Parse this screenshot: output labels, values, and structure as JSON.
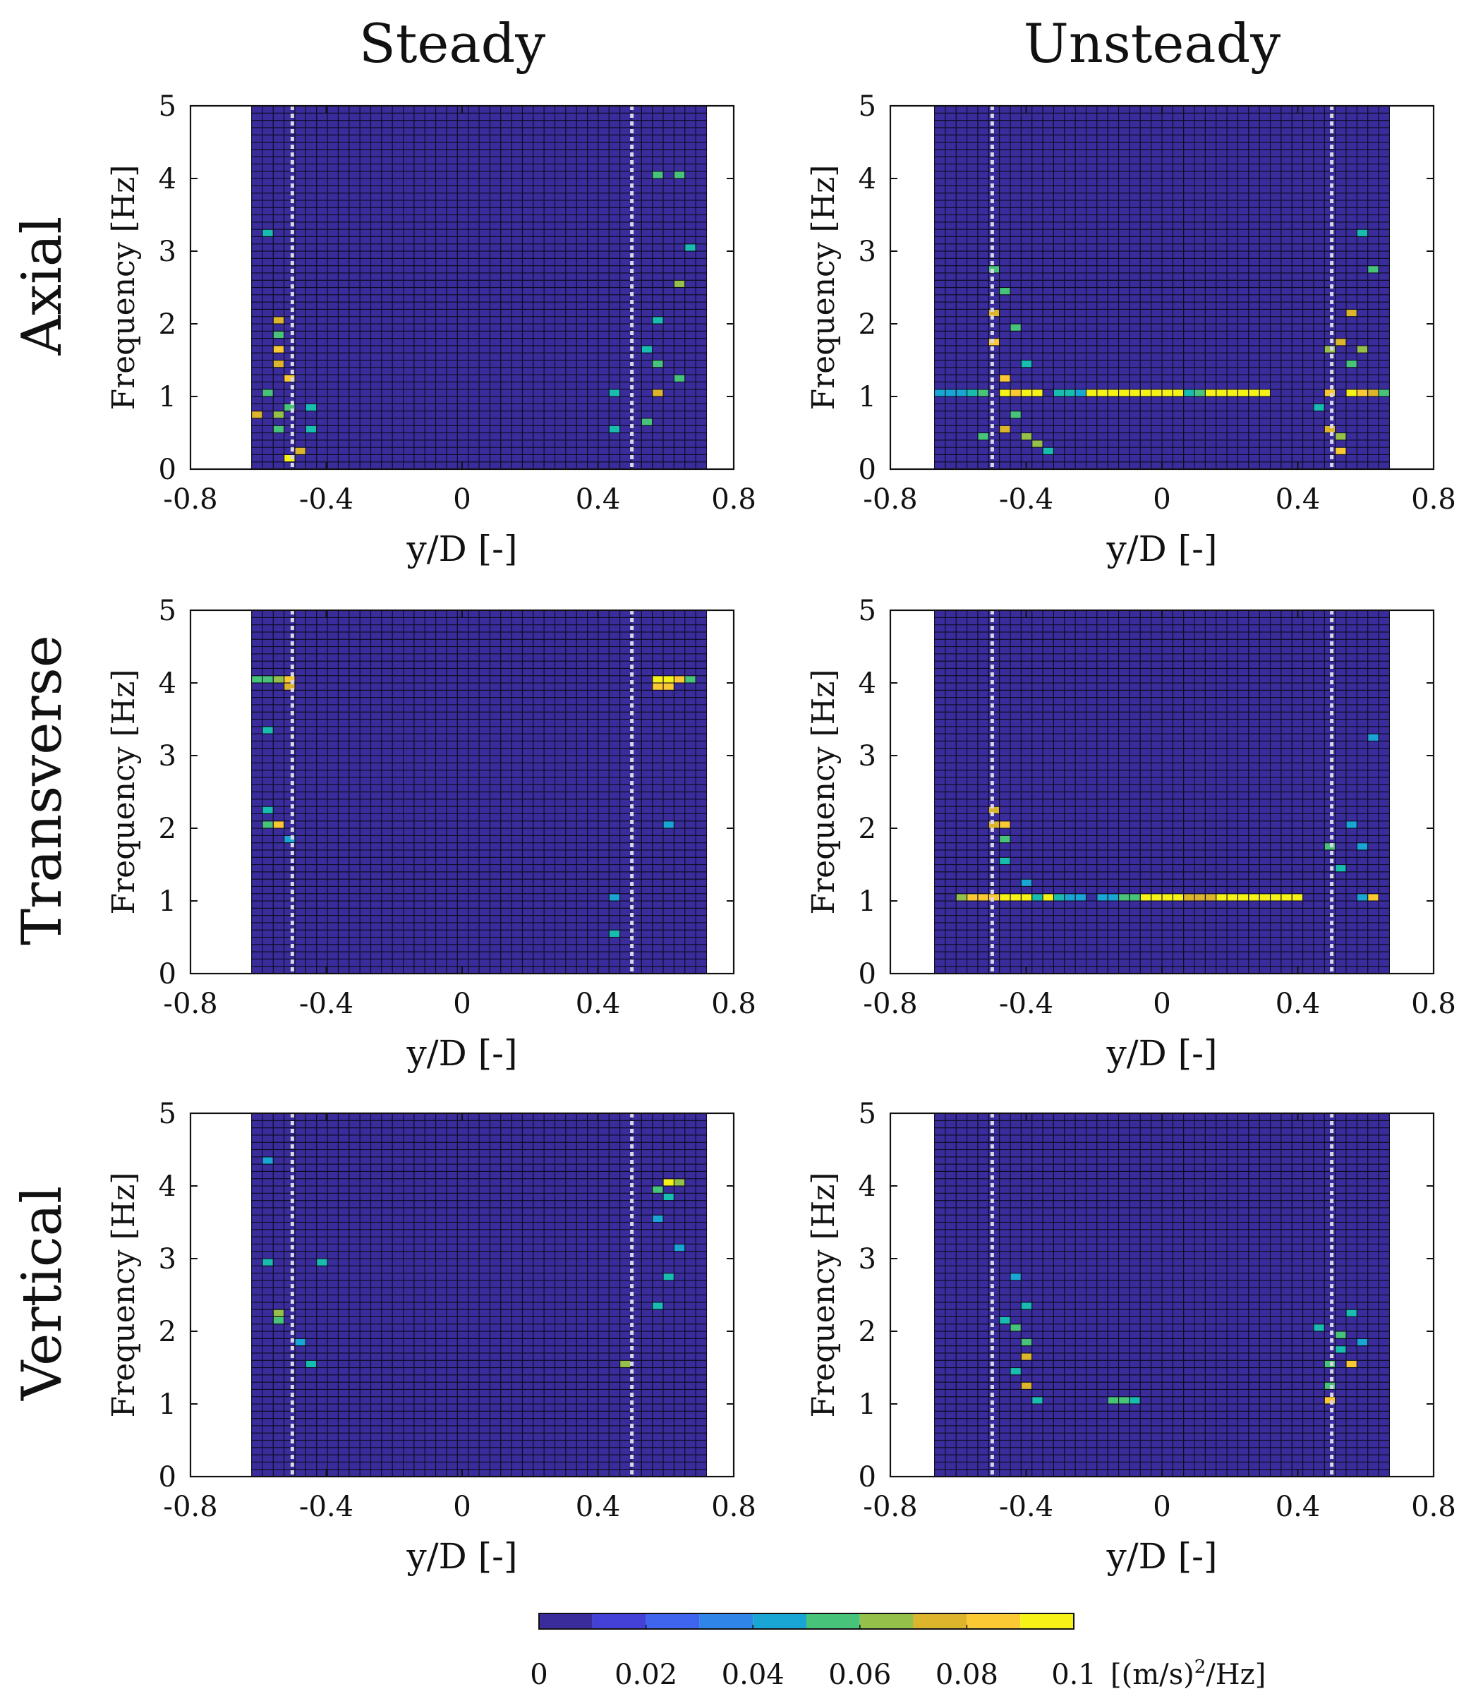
{
  "figure": {
    "column_titles": [
      "Steady",
      "Unsteady"
    ],
    "row_titles": [
      "Axial",
      "Transverse",
      "Vertical"
    ]
  },
  "colormap": [
    "#3a2c9b",
    "#4341d8",
    "#3f65ee",
    "#2f86e8",
    "#1aa6d4",
    "#18bdb0",
    "#48c47a",
    "#95c04a",
    "#dcb52c",
    "#fbc934",
    "#f6f218"
  ],
  "chart_data": [
    {
      "type": "heatmap",
      "row": "Axial",
      "column": "Steady",
      "xlabel": "y/D [-]",
      "ylabel": "Frequency [Hz]",
      "xlim": [
        -0.8,
        0.8
      ],
      "ylim": [
        0,
        5
      ],
      "xticks": [
        "-0.8",
        "-0.4",
        "0",
        "0.4",
        "0.8"
      ],
      "yticks": [
        "0",
        "1",
        "2",
        "3",
        "4",
        "5"
      ],
      "data_x_range": [
        -0.62,
        0.72
      ],
      "markers": [
        -0.5,
        0.5
      ],
      "x_bins": 42,
      "y_bins": 50,
      "value_unit": "[(m/s)^2/Hz]",
      "background_value": 0.001,
      "hot_cells": [
        [
          -0.607,
          0.75,
          0.08
        ],
        [
          -0.543,
          1.65,
          0.09
        ],
        [
          -0.543,
          1.45,
          0.08
        ],
        [
          -0.543,
          2.05,
          0.08
        ],
        [
          -0.543,
          0.75,
          0.07
        ],
        [
          -0.511,
          1.25,
          0.09
        ],
        [
          -0.511,
          0.15,
          0.1
        ],
        [
          -0.479,
          0.25,
          0.08
        ],
        [
          -0.511,
          0.85,
          0.06
        ],
        [
          -0.575,
          1.05,
          0.06
        ],
        [
          -0.543,
          1.85,
          0.06
        ],
        [
          -0.575,
          3.25,
          0.05
        ],
        [
          -0.543,
          0.55,
          0.06
        ],
        [
          -0.447,
          0.55,
          0.05
        ],
        [
          -0.447,
          0.85,
          0.05
        ],
        [
          0.568,
          4.05,
          0.06
        ],
        [
          0.632,
          2.55,
          0.07
        ],
        [
          0.632,
          4.05,
          0.06
        ],
        [
          0.568,
          1.05,
          0.08
        ],
        [
          0.568,
          1.45,
          0.06
        ],
        [
          0.632,
          1.25,
          0.06
        ],
        [
          0.536,
          0.65,
          0.06
        ],
        [
          0.44,
          1.05,
          0.05
        ],
        [
          0.44,
          0.55,
          0.05
        ],
        [
          0.568,
          2.05,
          0.05
        ],
        [
          0.664,
          3.05,
          0.05
        ],
        [
          0.536,
          1.65,
          0.05
        ]
      ],
      "band_cells": []
    },
    {
      "type": "heatmap",
      "row": "Axial",
      "column": "Unsteady",
      "xlabel": "y/D [-]",
      "ylabel": "Frequency [Hz]",
      "xlim": [
        -0.8,
        0.8
      ],
      "ylim": [
        0,
        5
      ],
      "xticks": [
        "-0.8",
        "-0.4",
        "0",
        "0.4",
        "0.8"
      ],
      "yticks": [
        "0",
        "1",
        "2",
        "3",
        "4",
        "5"
      ],
      "data_x_range": [
        -0.67,
        0.67
      ],
      "markers": [
        -0.5,
        0.5
      ],
      "x_bins": 42,
      "y_bins": 50,
      "value_unit": "[(m/s)^2/Hz]",
      "background_value": 0.001,
      "hot_cells": [
        [
          -0.495,
          2.15,
          0.08
        ],
        [
          -0.495,
          1.75,
          0.09
        ],
        [
          -0.463,
          1.25,
          0.09
        ],
        [
          -0.463,
          0.55,
          0.08
        ],
        [
          -0.431,
          1.05,
          0.06
        ],
        [
          -0.399,
          0.45,
          0.07
        ],
        [
          -0.431,
          0.75,
          0.06
        ],
        [
          -0.367,
          0.35,
          0.07
        ],
        [
          -0.495,
          2.75,
          0.06
        ],
        [
          -0.463,
          2.45,
          0.06
        ],
        [
          -0.431,
          1.95,
          0.06
        ],
        [
          -0.399,
          1.45,
          0.05
        ],
        [
          -0.335,
          0.25,
          0.05
        ],
        [
          -0.527,
          0.45,
          0.06
        ],
        [
          -0.399,
          1.05,
          0.05
        ],
        [
          0.485,
          1.05,
          0.09
        ],
        [
          0.485,
          0.55,
          0.08
        ],
        [
          0.517,
          1.75,
          0.08
        ],
        [
          0.549,
          2.15,
          0.08
        ],
        [
          0.517,
          0.25,
          0.09
        ],
        [
          0.517,
          0.45,
          0.07
        ],
        [
          0.549,
          1.45,
          0.06
        ],
        [
          0.581,
          1.65,
          0.07
        ],
        [
          0.613,
          2.75,
          0.06
        ],
        [
          0.581,
          3.25,
          0.05
        ],
        [
          0.645,
          1.05,
          0.06
        ],
        [
          0.485,
          1.65,
          0.07
        ],
        [
          0.453,
          0.85,
          0.05
        ]
      ],
      "band_cells": [
        [
          -0.655,
          1.05,
          0.04
        ],
        [
          -0.623,
          1.05,
          0.04
        ],
        [
          -0.591,
          1.05,
          0.04
        ],
        [
          -0.559,
          1.05,
          0.05
        ],
        [
          -0.527,
          1.05,
          0.06
        ],
        [
          -0.463,
          1.05,
          0.1
        ],
        [
          -0.431,
          1.05,
          0.09
        ],
        [
          -0.399,
          1.05,
          0.1
        ],
        [
          -0.367,
          1.05,
          0.1
        ],
        [
          -0.303,
          1.05,
          0.05
        ],
        [
          -0.271,
          1.05,
          0.05
        ],
        [
          -0.239,
          1.05,
          0.04
        ],
        [
          -0.207,
          1.05,
          0.1
        ],
        [
          -0.175,
          1.05,
          0.1
        ],
        [
          -0.143,
          1.05,
          0.1
        ],
        [
          -0.111,
          1.05,
          0.1
        ],
        [
          -0.079,
          1.05,
          0.1
        ],
        [
          -0.047,
          1.05,
          0.1
        ],
        [
          -0.015,
          1.05,
          0.1
        ],
        [
          0.017,
          1.05,
          0.1
        ],
        [
          0.049,
          1.05,
          0.1
        ],
        [
          0.081,
          1.05,
          0.05
        ],
        [
          0.113,
          1.05,
          0.06
        ],
        [
          0.145,
          1.05,
          0.1
        ],
        [
          0.177,
          1.05,
          0.1
        ],
        [
          0.209,
          1.05,
          0.1
        ],
        [
          0.241,
          1.05,
          0.1
        ],
        [
          0.273,
          1.05,
          0.1
        ],
        [
          0.305,
          1.05,
          0.1
        ],
        [
          0.549,
          1.05,
          0.1
        ],
        [
          0.581,
          1.05,
          0.09
        ],
        [
          0.613,
          1.05,
          0.08
        ]
      ]
    },
    {
      "type": "heatmap",
      "row": "Transverse",
      "column": "Steady",
      "xlabel": "y/D [-]",
      "ylabel": "Frequency [Hz]",
      "xlim": [
        -0.8,
        0.8
      ],
      "ylim": [
        0,
        5
      ],
      "xticks": [
        "-0.8",
        "-0.4",
        "0",
        "0.4",
        "0.8"
      ],
      "yticks": [
        "0",
        "1",
        "2",
        "3",
        "4",
        "5"
      ],
      "data_x_range": [
        -0.62,
        0.72
      ],
      "markers": [
        -0.5,
        0.5
      ],
      "x_bins": 42,
      "y_bins": 50,
      "value_unit": "[(m/s)^2/Hz]",
      "background_value": 0.001,
      "hot_cells": [
        [
          -0.607,
          4.05,
          0.06
        ],
        [
          -0.575,
          4.05,
          0.06
        ],
        [
          -0.543,
          4.05,
          0.07
        ],
        [
          -0.511,
          4.05,
          0.09
        ],
        [
          -0.511,
          3.95,
          0.08
        ],
        [
          -0.543,
          2.05,
          0.09
        ],
        [
          -0.575,
          2.05,
          0.06
        ],
        [
          -0.575,
          3.35,
          0.05
        ],
        [
          -0.575,
          2.25,
          0.05
        ],
        [
          -0.511,
          1.85,
          0.04
        ],
        [
          0.568,
          4.05,
          0.1
        ],
        [
          0.6,
          4.05,
          0.1
        ],
        [
          0.632,
          4.05,
          0.09
        ],
        [
          0.664,
          4.05,
          0.06
        ],
        [
          0.568,
          3.95,
          0.09
        ],
        [
          0.6,
          3.95,
          0.09
        ],
        [
          0.44,
          0.55,
          0.05
        ],
        [
          0.44,
          1.05,
          0.04
        ],
        [
          0.6,
          2.05,
          0.04
        ]
      ],
      "band_cells": []
    },
    {
      "type": "heatmap",
      "row": "Transverse",
      "column": "Unsteady",
      "xlabel": "y/D [-]",
      "ylabel": "Frequency [Hz]",
      "xlim": [
        -0.8,
        0.8
      ],
      "ylim": [
        0,
        5
      ],
      "xticks": [
        "-0.8",
        "-0.4",
        "0",
        "0.4",
        "0.8"
      ],
      "yticks": [
        "0",
        "1",
        "2",
        "3",
        "4",
        "5"
      ],
      "data_x_range": [
        -0.67,
        0.67
      ],
      "markers": [
        -0.5,
        0.5
      ],
      "x_bins": 42,
      "y_bins": 50,
      "value_unit": "[(m/s)^2/Hz]",
      "background_value": 0.001,
      "hot_cells": [
        [
          -0.495,
          2.25,
          0.08
        ],
        [
          -0.463,
          2.05,
          0.09
        ],
        [
          -0.495,
          2.05,
          0.08
        ],
        [
          -0.463,
          1.85,
          0.06
        ],
        [
          -0.463,
          1.55,
          0.05
        ],
        [
          -0.399,
          1.25,
          0.04
        ],
        [
          0.485,
          1.75,
          0.06
        ],
        [
          0.517,
          1.45,
          0.05
        ],
        [
          0.581,
          1.75,
          0.04
        ],
        [
          0.549,
          2.05,
          0.04
        ],
        [
          0.613,
          3.25,
          0.04
        ]
      ],
      "band_cells": [
        [
          -0.591,
          1.05,
          0.07
        ],
        [
          -0.559,
          1.05,
          0.09
        ],
        [
          -0.527,
          1.05,
          0.09
        ],
        [
          -0.495,
          1.05,
          0.09
        ],
        [
          -0.463,
          1.05,
          0.1
        ],
        [
          -0.431,
          1.05,
          0.1
        ],
        [
          -0.399,
          1.05,
          0.1
        ],
        [
          -0.367,
          1.05,
          0.05
        ],
        [
          -0.335,
          1.05,
          0.1
        ],
        [
          -0.303,
          1.05,
          0.05
        ],
        [
          -0.271,
          1.05,
          0.04
        ],
        [
          -0.239,
          1.05,
          0.04
        ],
        [
          -0.175,
          1.05,
          0.04
        ],
        [
          -0.143,
          1.05,
          0.04
        ],
        [
          -0.111,
          1.05,
          0.06
        ],
        [
          -0.079,
          1.05,
          0.06
        ],
        [
          -0.047,
          1.05,
          0.1
        ],
        [
          -0.015,
          1.05,
          0.1
        ],
        [
          0.017,
          1.05,
          0.1
        ],
        [
          0.049,
          1.05,
          0.1
        ],
        [
          0.081,
          1.05,
          0.08
        ],
        [
          0.113,
          1.05,
          0.08
        ],
        [
          0.145,
          1.05,
          0.08
        ],
        [
          0.177,
          1.05,
          0.1
        ],
        [
          0.209,
          1.05,
          0.1
        ],
        [
          0.241,
          1.05,
          0.1
        ],
        [
          0.273,
          1.05,
          0.1
        ],
        [
          0.305,
          1.05,
          0.1
        ],
        [
          0.337,
          1.05,
          0.1
        ],
        [
          0.369,
          1.05,
          0.1
        ],
        [
          0.401,
          1.05,
          0.1
        ],
        [
          0.581,
          1.05,
          0.04
        ],
        [
          0.613,
          1.05,
          0.09
        ]
      ]
    },
    {
      "type": "heatmap",
      "row": "Vertical",
      "column": "Steady",
      "xlabel": "y/D [-]",
      "ylabel": "Frequency [Hz]",
      "xlim": [
        -0.8,
        0.8
      ],
      "ylim": [
        0,
        5
      ],
      "xticks": [
        "-0.8",
        "-0.4",
        "0",
        "0.4",
        "0.8"
      ],
      "yticks": [
        "0",
        "1",
        "2",
        "3",
        "4",
        "5"
      ],
      "data_x_range": [
        -0.62,
        0.72
      ],
      "markers": [
        -0.5,
        0.5
      ],
      "x_bins": 42,
      "y_bins": 50,
      "value_unit": "[(m/s)^2/Hz]",
      "background_value": 0.001,
      "hot_cells": [
        [
          -0.543,
          2.25,
          0.07
        ],
        [
          -0.543,
          2.15,
          0.06
        ],
        [
          -0.575,
          2.95,
          0.05
        ],
        [
          -0.447,
          1.55,
          0.05
        ],
        [
          -0.479,
          1.85,
          0.04
        ],
        [
          -0.415,
          2.95,
          0.05
        ],
        [
          -0.575,
          4.35,
          0.04
        ],
        [
          0.6,
          4.05,
          0.1
        ],
        [
          0.632,
          4.05,
          0.07
        ],
        [
          0.568,
          3.95,
          0.06
        ],
        [
          0.6,
          3.85,
          0.05
        ],
        [
          0.568,
          2.35,
          0.05
        ],
        [
          0.472,
          1.55,
          0.07
        ],
        [
          0.6,
          2.75,
          0.05
        ],
        [
          0.632,
          3.15,
          0.04
        ],
        [
          0.568,
          3.55,
          0.04
        ]
      ],
      "band_cells": []
    },
    {
      "type": "heatmap",
      "row": "Vertical",
      "column": "Unsteady",
      "xlabel": "y/D [-]",
      "ylabel": "Frequency [Hz]",
      "xlim": [
        -0.8,
        0.8
      ],
      "ylim": [
        0,
        5
      ],
      "xticks": [
        "-0.8",
        "-0.4",
        "0",
        "0.4",
        "0.8"
      ],
      "yticks": [
        "0",
        "1",
        "2",
        "3",
        "4",
        "5"
      ],
      "data_x_range": [
        -0.67,
        0.67
      ],
      "markers": [
        -0.5,
        0.5
      ],
      "x_bins": 42,
      "y_bins": 50,
      "value_unit": "[(m/s)^2/Hz]",
      "background_value": 0.001,
      "hot_cells": [
        [
          -0.399,
          1.65,
          0.08
        ],
        [
          -0.399,
          1.85,
          0.06
        ],
        [
          -0.431,
          2.05,
          0.06
        ],
        [
          -0.399,
          1.25,
          0.08
        ],
        [
          -0.367,
          1.05,
          0.05
        ],
        [
          -0.431,
          1.45,
          0.05
        ],
        [
          -0.399,
          2.35,
          0.05
        ],
        [
          -0.431,
          2.75,
          0.04
        ],
        [
          -0.463,
          2.15,
          0.05
        ],
        [
          -0.143,
          1.05,
          0.06
        ],
        [
          -0.111,
          1.05,
          0.06
        ],
        [
          -0.079,
          1.05,
          0.05
        ],
        [
          0.485,
          1.05,
          0.09
        ],
        [
          0.485,
          1.25,
          0.06
        ],
        [
          0.485,
          1.55,
          0.06
        ],
        [
          0.517,
          1.95,
          0.06
        ],
        [
          0.549,
          1.55,
          0.09
        ],
        [
          0.549,
          2.25,
          0.05
        ],
        [
          0.453,
          2.05,
          0.05
        ],
        [
          0.517,
          1.75,
          0.05
        ],
        [
          0.581,
          1.85,
          0.04
        ]
      ],
      "band_cells": []
    }
  ],
  "colorbar": {
    "ticks": [
      "0",
      "0.02",
      "0.04",
      "0.06",
      "0.08",
      "0.1"
    ],
    "unit_label": "[(m/s)",
    "unit_sup": "2",
    "unit_tail": "/Hz]",
    "range": [
      0,
      0.1
    ],
    "levels": 10
  }
}
